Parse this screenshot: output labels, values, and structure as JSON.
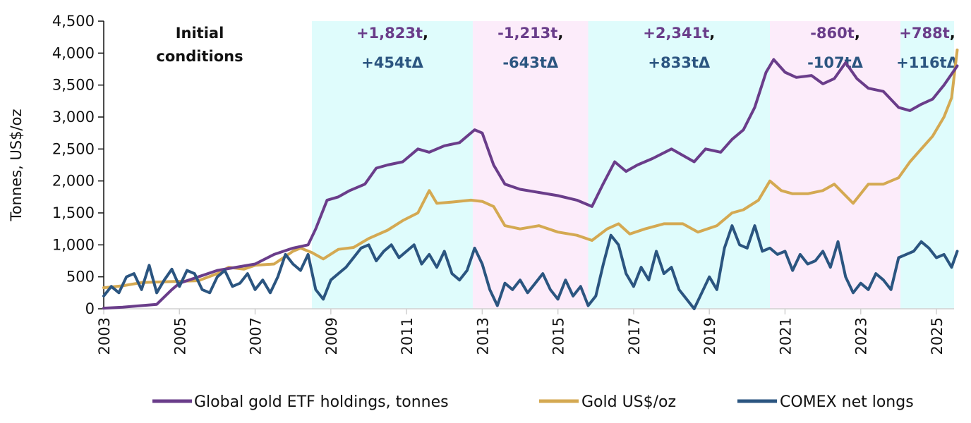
{
  "chart_data": {
    "type": "line",
    "title": "",
    "xlabel": "",
    "ylabel": "Tonnes, US$/oz",
    "xlim": [
      2003,
      2025.55
    ],
    "ylim": [
      0,
      4500
    ],
    "y_ticks": [
      0,
      500,
      1000,
      1500,
      2000,
      2500,
      3000,
      3500,
      4000,
      4500
    ],
    "y_tick_labels": [
      "0",
      "500",
      "1,000",
      "1,500",
      "2,000",
      "2,500",
      "3,000",
      "3,500",
      "4,000",
      "4,500"
    ],
    "x_ticks": [
      2003,
      2005,
      2007,
      2009,
      2011,
      2013,
      2015,
      2017,
      2019,
      2021,
      2023,
      2025
    ],
    "x_tick_labels": [
      "2003",
      "2005",
      "2007",
      "2009",
      "2011",
      "2013",
      "2015",
      "2017",
      "2019",
      "2021",
      "2023",
      "2025"
    ],
    "grid": false,
    "legend_position": "bottom",
    "colors": {
      "etf": "#6a3d8a",
      "gold": "#d4a952",
      "comex": "#2b5580",
      "shade_cyan": "#dffcfc",
      "shade_pink": "#fcecfa"
    },
    "regions": [
      {
        "start": 2003.0,
        "end": 2008.5,
        "shade": "none",
        "label_line1": "Initial",
        "label_line2": "conditions",
        "style": "plain"
      },
      {
        "start": 2008.5,
        "end": 2012.75,
        "shade": "cyan",
        "label_line1": "+1,823t",
        "label_line2": "+454tΔ",
        "style": "delta"
      },
      {
        "start": 2012.75,
        "end": 2015.8,
        "shade": "pink",
        "label_line1": "-1,213t",
        "label_line2": "-643tΔ",
        "style": "delta"
      },
      {
        "start": 2015.8,
        "end": 2020.6,
        "shade": "cyan",
        "label_line1": "+2,341t",
        "label_line2": "+833tΔ",
        "style": "delta"
      },
      {
        "start": 2020.6,
        "end": 2024.05,
        "shade": "pink",
        "label_line1": "-860t",
        "label_line2": "-107tΔ",
        "style": "delta"
      },
      {
        "start": 2024.05,
        "end": 2025.55,
        "shade": "cyan",
        "label_line1": "+788t",
        "label_line2": "+116tΔ",
        "style": "delta"
      }
    ],
    "series": [
      {
        "name": "Global gold ETF holdings, tonnes",
        "key": "etf",
        "x": [
          2003.0,
          2003.5,
          2004.0,
          2004.4,
          2004.8,
          2005.0,
          2005.5,
          2006.0,
          2006.5,
          2007.0,
          2007.5,
          2008.0,
          2008.4,
          2008.6,
          2008.9,
          2009.2,
          2009.5,
          2009.9,
          2010.2,
          2010.5,
          2010.9,
          2011.3,
          2011.6,
          2012.0,
          2012.4,
          2012.8,
          2013.0,
          2013.3,
          2013.6,
          2014.0,
          2014.5,
          2015.0,
          2015.5,
          2015.9,
          2016.2,
          2016.5,
          2016.8,
          2017.1,
          2017.5,
          2018.0,
          2018.3,
          2018.6,
          2018.9,
          2019.3,
          2019.6,
          2019.9,
          2020.2,
          2020.5,
          2020.7,
          2021.0,
          2021.3,
          2021.7,
          2022.0,
          2022.3,
          2022.6,
          2022.9,
          2023.2,
          2023.6,
          2024.0,
          2024.3,
          2024.6,
          2024.9,
          2025.2,
          2025.55
        ],
        "values": [
          10,
          25,
          50,
          70,
          300,
          400,
          500,
          600,
          650,
          700,
          850,
          950,
          1000,
          1250,
          1700,
          1750,
          1850,
          1950,
          2200,
          2250,
          2300,
          2500,
          2450,
          2550,
          2600,
          2800,
          2750,
          2250,
          1950,
          1870,
          1820,
          1770,
          1700,
          1600,
          1960,
          2300,
          2150,
          2250,
          2350,
          2500,
          2400,
          2300,
          2500,
          2450,
          2650,
          2800,
          3150,
          3700,
          3900,
          3700,
          3620,
          3650,
          3520,
          3600,
          3850,
          3600,
          3450,
          3400,
          3150,
          3100,
          3200,
          3280,
          3500,
          3800
        ]
      },
      {
        "name": "Gold US$/oz",
        "key": "gold",
        "x": [
          2003.0,
          2003.5,
          2004.0,
          2004.5,
          2005.0,
          2005.5,
          2006.0,
          2006.3,
          2006.7,
          2007.0,
          2007.5,
          2008.0,
          2008.2,
          2008.5,
          2008.8,
          2009.2,
          2009.6,
          2010.0,
          2010.5,
          2010.9,
          2011.3,
          2011.6,
          2011.8,
          2012.2,
          2012.7,
          2013.0,
          2013.3,
          2013.6,
          2014.0,
          2014.5,
          2015.0,
          2015.5,
          2015.9,
          2016.3,
          2016.6,
          2016.9,
          2017.3,
          2017.8,
          2018.3,
          2018.7,
          2019.2,
          2019.6,
          2019.9,
          2020.3,
          2020.6,
          2020.9,
          2021.2,
          2021.6,
          2022.0,
          2022.3,
          2022.8,
          2023.2,
          2023.6,
          2024.0,
          2024.3,
          2024.6,
          2024.9,
          2025.2,
          2025.4,
          2025.55
        ],
        "values": [
          330,
          360,
          410,
          420,
          430,
          440,
          550,
          650,
          620,
          680,
          700,
          900,
          950,
          880,
          780,
          930,
          960,
          1100,
          1230,
          1380,
          1500,
          1850,
          1650,
          1670,
          1700,
          1680,
          1600,
          1300,
          1250,
          1300,
          1200,
          1150,
          1070,
          1250,
          1330,
          1170,
          1250,
          1330,
          1330,
          1200,
          1300,
          1500,
          1550,
          1700,
          2000,
          1850,
          1800,
          1800,
          1850,
          1950,
          1650,
          1950,
          1950,
          2050,
          2300,
          2500,
          2700,
          3000,
          3300,
          4050
        ]
      },
      {
        "name": "COMEX net longs",
        "key": "comex",
        "x": [
          2003.0,
          2003.2,
          2003.4,
          2003.6,
          2003.8,
          2004.0,
          2004.2,
          2004.4,
          2004.6,
          2004.8,
          2005.0,
          2005.2,
          2005.4,
          2005.6,
          2005.8,
          2006.0,
          2006.2,
          2006.4,
          2006.6,
          2006.8,
          2007.0,
          2007.2,
          2007.4,
          2007.6,
          2007.8,
          2008.0,
          2008.2,
          2008.4,
          2008.6,
          2008.8,
          2009.0,
          2009.2,
          2009.4,
          2009.6,
          2009.8,
          2010.0,
          2010.2,
          2010.4,
          2010.6,
          2010.8,
          2011.0,
          2011.2,
          2011.4,
          2011.6,
          2011.8,
          2012.0,
          2012.2,
          2012.4,
          2012.6,
          2012.8,
          2013.0,
          2013.2,
          2013.4,
          2013.6,
          2013.8,
          2014.0,
          2014.2,
          2014.4,
          2014.6,
          2014.8,
          2015.0,
          2015.2,
          2015.4,
          2015.6,
          2015.8,
          2016.0,
          2016.2,
          2016.4,
          2016.6,
          2016.8,
          2017.0,
          2017.2,
          2017.4,
          2017.6,
          2017.8,
          2018.0,
          2018.2,
          2018.4,
          2018.6,
          2018.8,
          2019.0,
          2019.2,
          2019.4,
          2019.6,
          2019.8,
          2020.0,
          2020.2,
          2020.4,
          2020.6,
          2020.8,
          2021.0,
          2021.2,
          2021.4,
          2021.6,
          2021.8,
          2022.0,
          2022.2,
          2022.4,
          2022.6,
          2022.8,
          2023.0,
          2023.2,
          2023.4,
          2023.6,
          2023.8,
          2024.0,
          2024.2,
          2024.4,
          2024.6,
          2024.8,
          2025.0,
          2025.2,
          2025.4,
          2025.55
        ],
        "values": [
          200,
          350,
          250,
          500,
          550,
          300,
          680,
          250,
          450,
          620,
          350,
          600,
          550,
          300,
          250,
          500,
          600,
          350,
          400,
          550,
          300,
          450,
          250,
          500,
          850,
          700,
          600,
          850,
          300,
          150,
          450,
          550,
          650,
          800,
          950,
          1000,
          750,
          900,
          1000,
          800,
          900,
          1000,
          700,
          850,
          650,
          900,
          550,
          450,
          600,
          950,
          700,
          300,
          50,
          400,
          300,
          450,
          250,
          400,
          550,
          300,
          150,
          450,
          200,
          350,
          50,
          200,
          700,
          1150,
          1000,
          550,
          350,
          650,
          450,
          900,
          550,
          650,
          300,
          150,
          0,
          250,
          500,
          300,
          950,
          1300,
          1000,
          950,
          1300,
          900,
          950,
          850,
          900,
          600,
          850,
          700,
          750,
          900,
          650,
          1050,
          500,
          250,
          400,
          300,
          550,
          450,
          300,
          800,
          850,
          900,
          1050,
          950,
          800,
          850,
          650,
          900
        ]
      }
    ]
  }
}
